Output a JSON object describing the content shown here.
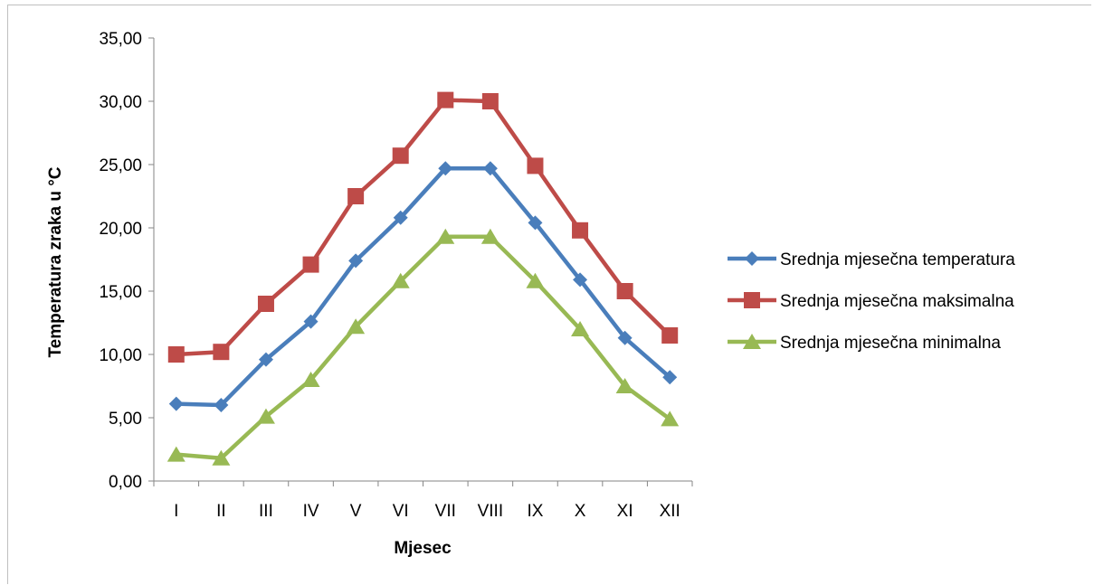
{
  "chart_data": {
    "type": "line",
    "title": "",
    "xlabel": "Mjesec",
    "ylabel": "Temperatura zraka u °C",
    "categories": [
      "I",
      "II",
      "III",
      "IV",
      "V",
      "VI",
      "VII",
      "VIII",
      "IX",
      "X",
      "XI",
      "XII"
    ],
    "ylim": [
      0,
      35
    ],
    "yticks": [
      "0,00",
      "5,00",
      "10,00",
      "15,00",
      "20,00",
      "25,00",
      "30,00",
      "35,00"
    ],
    "grid": false,
    "legend_position": "right",
    "series": [
      {
        "name": "Srednja mjesečna temperatura",
        "color": "#4a7ebb",
        "marker": "diamond",
        "values": [
          6.1,
          6.0,
          9.6,
          12.6,
          17.4,
          20.8,
          24.7,
          24.7,
          20.4,
          15.9,
          11.3,
          8.2
        ]
      },
      {
        "name": "Srednja mjesečna maksimalna",
        "color": "#be4b48",
        "marker": "square",
        "values": [
          10.0,
          10.2,
          14.0,
          17.1,
          22.5,
          25.7,
          30.1,
          30.0,
          24.9,
          19.8,
          15.0,
          11.5
        ]
      },
      {
        "name": "Srednja mjesečna minimalna",
        "color": "#98b954",
        "marker": "triangle",
        "values": [
          2.1,
          1.8,
          5.1,
          8.0,
          12.2,
          15.8,
          19.3,
          19.3,
          15.8,
          12.0,
          7.5,
          4.9
        ]
      }
    ]
  }
}
